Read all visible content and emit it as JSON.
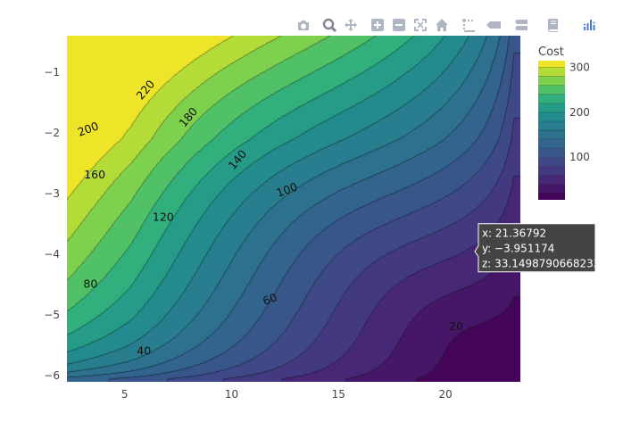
{
  "toolbar": {
    "buttons": [
      {
        "name": "camera-icon",
        "title": "Download plot as a png"
      },
      {
        "name": "zoom-icon",
        "title": "Zoom"
      },
      {
        "name": "pan-icon",
        "title": "Pan"
      },
      {
        "name": "zoom-in-icon",
        "title": "Zoom in"
      },
      {
        "name": "zoom-out-icon",
        "title": "Zoom out"
      },
      {
        "name": "autoscale-icon",
        "title": "Autoscale"
      },
      {
        "name": "home-icon",
        "title": "Reset axes"
      },
      {
        "name": "spikelines-icon",
        "title": "Toggle Spike Lines"
      },
      {
        "name": "hover-closest-icon",
        "title": "Show closest data on hover"
      },
      {
        "name": "hover-compare-icon",
        "title": "Compare data on hover"
      },
      {
        "name": "book-icon",
        "title": "Edit in Chart Studio"
      },
      {
        "name": "plotly-logo-icon",
        "title": "Produced with Plotly"
      }
    ]
  },
  "chart_data": {
    "type": "contour",
    "title": "",
    "xlabel": "",
    "ylabel": "",
    "xlim": [
      2.3,
      23.5
    ],
    "ylim": [
      -6.1,
      -0.4
    ],
    "x_ticks": [
      5,
      10,
      15,
      20
    ],
    "y_ticks": [
      -1,
      -2,
      -3,
      -4,
      -5,
      -6
    ],
    "colorscale": "viridis",
    "colorbar": {
      "title": "Cost",
      "ticks": [
        100,
        200,
        300
      ],
      "range": [
        5,
        315
      ]
    },
    "levels": [
      20,
      40,
      60,
      80,
      100,
      120,
      140,
      160,
      180,
      200,
      220,
      240,
      260,
      280,
      300
    ],
    "contour_labels": [
      {
        "text": "220",
        "x": 6.0,
        "y": -1.3
      },
      {
        "text": "200",
        "x": 3.3,
        "y": -1.95
      },
      {
        "text": "180",
        "x": 8.0,
        "y": -1.75
      },
      {
        "text": "160",
        "x": 3.6,
        "y": -2.7
      },
      {
        "text": "140",
        "x": 10.3,
        "y": -2.45
      },
      {
        "text": "120",
        "x": 6.8,
        "y": -3.4
      },
      {
        "text": "100",
        "x": 12.6,
        "y": -2.95
      },
      {
        "text": "80",
        "x": 3.4,
        "y": -4.5
      },
      {
        "text": "60",
        "x": 11.8,
        "y": -4.75
      },
      {
        "text": "40",
        "x": 5.9,
        "y": -5.6
      },
      {
        "text": "20",
        "x": 20.5,
        "y": -5.2
      }
    ],
    "hover": {
      "x_text": "x: 21.36792",
      "y_text": "y: −3.951174",
      "z_text": "z: 33.1498790668233",
      "x": 21.37,
      "y": -3.951
    }
  }
}
